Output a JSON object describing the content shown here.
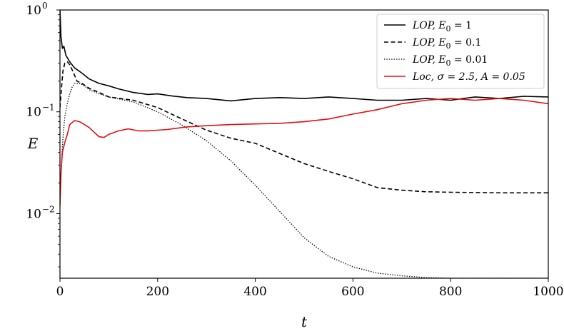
{
  "chart_data": {
    "type": "line",
    "xlabel": "t",
    "ylabel": "E",
    "xlim": [
      0,
      1000
    ],
    "ylim": [
      0.00232,
      1
    ],
    "yscale": "log",
    "grid": false,
    "legend_position": "top-right",
    "x_ticks": [
      {
        "value": 0,
        "label": "0"
      },
      {
        "value": 200,
        "label": "200"
      },
      {
        "value": 400,
        "label": "400"
      },
      {
        "value": 600,
        "label": "600"
      },
      {
        "value": 800,
        "label": "800"
      },
      {
        "value": 1000,
        "label": "1000"
      }
    ],
    "y_ticks": [
      {
        "value": 0.01,
        "base": "10",
        "exp": "−2"
      },
      {
        "value": 0.1,
        "base": "10",
        "exp": "−1"
      },
      {
        "value": 1,
        "base": "10",
        "exp": "0"
      }
    ],
    "series": [
      {
        "name": "LOP, E0 = 1",
        "legend_label": {
          "head": "LOP, E",
          "sub": "0",
          "tail": " = 1"
        },
        "color": "#000000",
        "style": "solid",
        "x": [
          0,
          2,
          5,
          8,
          12,
          20,
          30,
          45,
          60,
          80,
          100,
          120,
          150,
          180,
          200,
          230,
          260,
          300,
          350,
          400,
          450,
          500,
          550,
          600,
          650,
          700,
          750,
          800,
          850,
          900,
          950,
          1000
        ],
        "y": [
          1.0,
          0.55,
          0.42,
          0.44,
          0.36,
          0.31,
          0.27,
          0.24,
          0.21,
          0.19,
          0.18,
          0.168,
          0.155,
          0.148,
          0.15,
          0.143,
          0.138,
          0.135,
          0.128,
          0.135,
          0.138,
          0.135,
          0.14,
          0.135,
          0.13,
          0.13,
          0.135,
          0.13,
          0.14,
          0.135,
          0.142,
          0.14
        ]
      },
      {
        "name": "LOP, E0 = 0.1",
        "legend_label": {
          "head": "LOP, E",
          "sub": "0",
          "tail": " = 0.1"
        },
        "color": "#000000",
        "style": "dashed",
        "x": [
          0,
          3,
          6,
          10,
          15,
          20,
          28,
          35,
          45,
          60,
          80,
          100,
          150,
          200,
          250,
          300,
          350,
          400,
          450,
          500,
          550,
          600,
          650,
          700,
          750,
          800,
          900,
          1000
        ],
        "y": [
          0.11,
          0.17,
          0.25,
          0.3,
          0.31,
          0.29,
          0.24,
          0.2,
          0.19,
          0.17,
          0.155,
          0.14,
          0.13,
          0.11,
          0.085,
          0.066,
          0.055,
          0.049,
          0.039,
          0.031,
          0.026,
          0.022,
          0.018,
          0.017,
          0.0164,
          0.0162,
          0.016,
          0.016
        ]
      },
      {
        "name": "LOP, E0 = 0.01",
        "legend_label": {
          "head": "LOP, E",
          "sub": "0",
          "tail": " = 0.01"
        },
        "color": "#000000",
        "style": "dotted",
        "x": [
          0,
          3,
          6,
          10,
          15,
          20,
          25,
          30,
          40,
          50,
          60,
          80,
          100,
          150,
          200,
          250,
          300,
          350,
          400,
          450,
          500,
          550,
          600,
          650,
          700,
          750,
          800,
          850,
          900,
          950,
          1000
        ],
        "y": [
          0.012,
          0.03,
          0.055,
          0.09,
          0.12,
          0.15,
          0.175,
          0.19,
          0.19,
          0.18,
          0.165,
          0.15,
          0.14,
          0.125,
          0.1,
          0.074,
          0.052,
          0.033,
          0.019,
          0.0105,
          0.0058,
          0.0038,
          0.003,
          0.0026,
          0.00245,
          0.00235,
          0.00232,
          0.00232,
          0.00232,
          0.00232,
          0.00232
        ]
      },
      {
        "name": "Loc, σ = 2.5, A = 0.05",
        "legend_label": {
          "head": "Loc, σ = 2.5, A = 0.05",
          "sub": "",
          "tail": ""
        },
        "color": "#e01010",
        "style": "solid",
        "x": [
          0,
          2,
          5,
          10,
          15,
          20,
          30,
          40,
          50,
          60,
          70,
          80,
          90,
          100,
          120,
          140,
          160,
          180,
          200,
          220,
          240,
          260,
          280,
          300,
          350,
          400,
          450,
          500,
          550,
          600,
          650,
          700,
          750,
          800,
          850,
          900,
          950,
          1000
        ],
        "y": [
          0.012,
          0.025,
          0.04,
          0.05,
          0.06,
          0.075,
          0.082,
          0.08,
          0.075,
          0.07,
          0.063,
          0.057,
          0.056,
          0.06,
          0.065,
          0.068,
          0.065,
          0.065,
          0.066,
          0.067,
          0.069,
          0.071,
          0.072,
          0.073,
          0.075,
          0.076,
          0.077,
          0.08,
          0.085,
          0.095,
          0.105,
          0.12,
          0.13,
          0.135,
          0.13,
          0.135,
          0.13,
          0.12
        ]
      }
    ]
  }
}
